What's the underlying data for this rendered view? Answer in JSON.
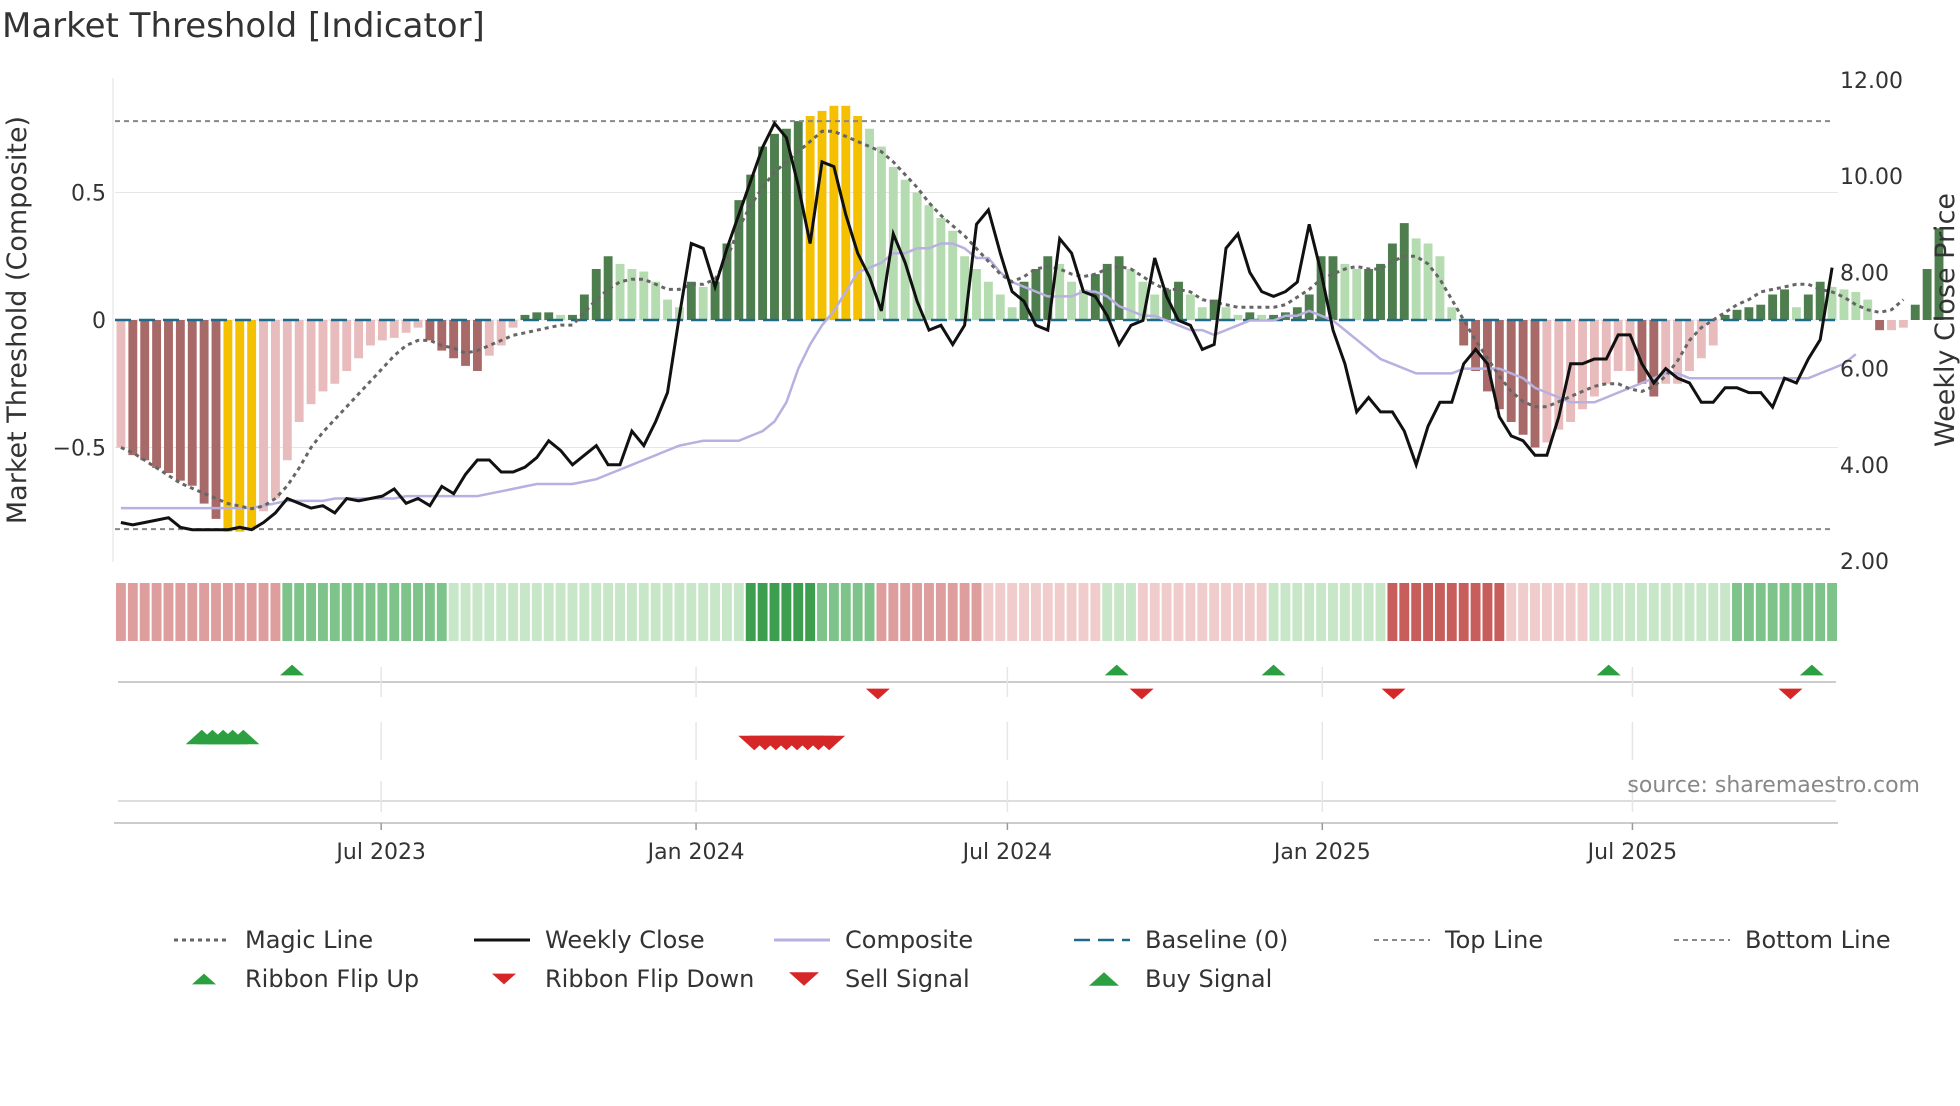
{
  "chart_data": {
    "type": "bar",
    "title": "Market Threshold [Indicator]",
    "ylabel_left": "Market Threshold (Composite)",
    "ylabel_right": "Weekly Close Price",
    "ylim_left": [
      -0.9,
      0.9
    ],
    "ylim_right": [
      2.0,
      12.0
    ],
    "yticks_left": [
      {
        "value": 0.5,
        "label": "0.5"
      },
      {
        "value": 0,
        "label": "0"
      },
      {
        "value": -0.5,
        "label": "−0.5"
      }
    ],
    "yticks_right": [
      {
        "value": 12,
        "label": "12.00"
      },
      {
        "value": 10,
        "label": "10.00"
      },
      {
        "value": 8,
        "label": "8.00"
      },
      {
        "value": 6,
        "label": "6.00"
      },
      {
        "value": 4,
        "label": "4.00"
      },
      {
        "value": 2,
        "label": "2.00"
      }
    ],
    "x_range": [
      0,
      145
    ],
    "xticks": [
      {
        "week": 22.4,
        "label": "Jul 2023"
      },
      {
        "week": 48.9,
        "label": "Jan 2024"
      },
      {
        "week": 75.1,
        "label": "Jul 2024"
      },
      {
        "week": 101.6,
        "label": "Jan 2025"
      },
      {
        "week": 127.7,
        "label": "Jul 2025"
      }
    ],
    "top_line": 0.78,
    "bottom_line": -0.82,
    "composite_bars": [
      -0.5,
      -0.53,
      -0.55,
      -0.58,
      -0.6,
      -0.63,
      -0.65,
      -0.72,
      -0.78,
      -0.83,
      -0.83,
      -0.82,
      -0.75,
      -0.7,
      -0.55,
      -0.4,
      -0.33,
      -0.28,
      -0.25,
      -0.2,
      -0.15,
      -0.1,
      -0.08,
      -0.07,
      -0.05,
      -0.03,
      -0.08,
      -0.12,
      -0.15,
      -0.18,
      -0.2,
      -0.14,
      -0.1,
      -0.03,
      0.02,
      0.03,
      0.03,
      0.02,
      0.02,
      0.1,
      0.2,
      0.25,
      0.22,
      0.2,
      0.19,
      0.15,
      0.08,
      0.05,
      0.15,
      0.13,
      0.15,
      0.3,
      0.47,
      0.57,
      0.68,
      0.73,
      0.75,
      0.78,
      0.8,
      0.82,
      0.84,
      0.84,
      0.8,
      0.75,
      0.68,
      0.6,
      0.55,
      0.5,
      0.45,
      0.4,
      0.35,
      0.25,
      0.2,
      0.15,
      0.1,
      0.05,
      0.15,
      0.2,
      0.25,
      0.22,
      0.15,
      0.12,
      0.18,
      0.22,
      0.25,
      0.2,
      0.15,
      0.1,
      0.12,
      0.15,
      0.1,
      0.05,
      0.08,
      0.05,
      0.02,
      0.03,
      0.02,
      0.02,
      0.03,
      0.05,
      0.1,
      0.25,
      0.25,
      0.22,
      0.2,
      0.2,
      0.22,
      0.3,
      0.38,
      0.32,
      0.3,
      0.25,
      0.05,
      -0.1,
      -0.2,
      -0.28,
      -0.35,
      -0.4,
      -0.45,
      -0.5,
      -0.48,
      -0.43,
      -0.4,
      -0.35,
      -0.3,
      -0.25,
      -0.2,
      -0.2,
      -0.25,
      -0.3,
      -0.25,
      -0.25,
      -0.2,
      -0.15,
      -0.1,
      0.02,
      0.04,
      0.05,
      0.06,
      0.1,
      0.12,
      0.05,
      0.1,
      0.15,
      0.13,
      0.12,
      0.11,
      0.08,
      -0.04,
      -0.04,
      -0.03,
      0.06,
      0.2,
      0.36
    ],
    "weekly_close": [
      2.8,
      2.75,
      2.8,
      2.85,
      2.9,
      2.7,
      2.65,
      2.65,
      2.65,
      2.65,
      2.7,
      2.65,
      2.8,
      3.0,
      3.3,
      3.2,
      3.1,
      3.15,
      3.0,
      3.3,
      3.25,
      3.3,
      3.35,
      3.5,
      3.2,
      3.3,
      3.15,
      3.55,
      3.4,
      3.8,
      4.1,
      4.1,
      3.85,
      3.85,
      3.95,
      4.15,
      4.5,
      4.3,
      4.0,
      4.2,
      4.4,
      4.0,
      4.0,
      4.7,
      4.4,
      4.9,
      5.5,
      7.1,
      8.6,
      8.5,
      7.7,
      8.5,
      9.2,
      9.9,
      10.6,
      11.1,
      10.8,
      9.8,
      8.6,
      10.3,
      10.2,
      9.2,
      8.4,
      7.9,
      7.2,
      8.8,
      8.2,
      7.4,
      6.8,
      6.9,
      6.5,
      6.9,
      9.0,
      9.3,
      8.4,
      7.6,
      7.4,
      6.9,
      6.8,
      8.7,
      8.4,
      7.6,
      7.5,
      7.1,
      6.5,
      6.9,
      7.0,
      8.3,
      7.5,
      7.0,
      6.9,
      6.4,
      6.5,
      8.5,
      8.8,
      8.0,
      7.6,
      7.5,
      7.6,
      7.8,
      9.0,
      8.0,
      6.8,
      6.1,
      5.1,
      5.4,
      5.1,
      5.1,
      4.7,
      4.0,
      4.8,
      5.3,
      5.3,
      6.1,
      6.4,
      6.1,
      5.0,
      4.6,
      4.5,
      4.2,
      4.2,
      5.0,
      6.1,
      6.1,
      6.2,
      6.2,
      6.7,
      6.7,
      6.1,
      5.7,
      6.0,
      5.8,
      5.7,
      5.3,
      5.3,
      5.6,
      5.6,
      5.5,
      5.5,
      5.2,
      5.8,
      5.7,
      6.2,
      6.6,
      8.1
    ],
    "composite_line": [
      3.1,
      3.1,
      3.1,
      3.1,
      3.1,
      3.1,
      3.1,
      3.1,
      3.1,
      3.1,
      3.1,
      3.1,
      3.15,
      3.2,
      3.25,
      3.25,
      3.25,
      3.25,
      3.3,
      3.3,
      3.3,
      3.3,
      3.3,
      3.3,
      3.35,
      3.35,
      3.35,
      3.35,
      3.35,
      3.35,
      3.35,
      3.4,
      3.45,
      3.5,
      3.55,
      3.6,
      3.6,
      3.6,
      3.6,
      3.65,
      3.7,
      3.8,
      3.9,
      4.0,
      4.1,
      4.2,
      4.3,
      4.4,
      4.45,
      4.5,
      4.5,
      4.5,
      4.5,
      4.6,
      4.7,
      4.9,
      5.3,
      6.0,
      6.5,
      6.9,
      7.2,
      7.6,
      8.0,
      8.1,
      8.2,
      8.4,
      8.4,
      8.5,
      8.5,
      8.6,
      8.6,
      8.5,
      8.3,
      8.3,
      8.0,
      7.8,
      7.7,
      7.6,
      7.5,
      7.5,
      7.5,
      7.6,
      7.6,
      7.5,
      7.3,
      7.2,
      7.1,
      7.1,
      7.0,
      6.9,
      6.8,
      6.8,
      6.7,
      6.8,
      6.9,
      7.0,
      7.0,
      7.0,
      7.1,
      7.1,
      7.2,
      7.1,
      7.0,
      6.8,
      6.6,
      6.4,
      6.2,
      6.1,
      6.0,
      5.9,
      5.9,
      5.9,
      5.9,
      6.0,
      6.0,
      6.0,
      6.0,
      5.9,
      5.8,
      5.6,
      5.5,
      5.4,
      5.3,
      5.3,
      5.3,
      5.4,
      5.5,
      5.6,
      5.7,
      5.8,
      5.9,
      5.9,
      5.8,
      5.8,
      5.8,
      5.8,
      5.8,
      5.8,
      5.8,
      5.8,
      5.8,
      5.8,
      5.8,
      5.9,
      6.0,
      6.1,
      6.3
    ],
    "magic_line": [
      -0.5,
      -0.52,
      -0.55,
      -0.58,
      -0.61,
      -0.64,
      -0.66,
      -0.68,
      -0.7,
      -0.72,
      -0.73,
      -0.74,
      -0.73,
      -0.7,
      -0.65,
      -0.58,
      -0.5,
      -0.44,
      -0.39,
      -0.34,
      -0.29,
      -0.24,
      -0.19,
      -0.14,
      -0.1,
      -0.08,
      -0.08,
      -0.1,
      -0.11,
      -0.13,
      -0.12,
      -0.1,
      -0.08,
      -0.06,
      -0.05,
      -0.04,
      -0.03,
      -0.02,
      -0.02,
      0.03,
      0.08,
      0.12,
      0.15,
      0.16,
      0.16,
      0.14,
      0.12,
      0.12,
      0.14,
      0.14,
      0.16,
      0.24,
      0.36,
      0.45,
      0.52,
      0.58,
      0.62,
      0.66,
      0.7,
      0.74,
      0.74,
      0.72,
      0.7,
      0.68,
      0.66,
      0.62,
      0.57,
      0.52,
      0.46,
      0.41,
      0.37,
      0.33,
      0.28,
      0.23,
      0.18,
      0.15,
      0.17,
      0.2,
      0.21,
      0.2,
      0.18,
      0.17,
      0.18,
      0.2,
      0.21,
      0.2,
      0.17,
      0.14,
      0.12,
      0.12,
      0.11,
      0.08,
      0.07,
      0.06,
      0.05,
      0.05,
      0.05,
      0.05,
      0.06,
      0.09,
      0.12,
      0.16,
      0.18,
      0.2,
      0.21,
      0.2,
      0.2,
      0.23,
      0.25,
      0.25,
      0.22,
      0.16,
      0.08,
      0.0,
      -0.08,
      -0.15,
      -0.22,
      -0.28,
      -0.32,
      -0.34,
      -0.34,
      -0.32,
      -0.3,
      -0.28,
      -0.26,
      -0.25,
      -0.25,
      -0.27,
      -0.28,
      -0.26,
      -0.22,
      -0.16,
      -0.08,
      -0.03,
      0.0,
      0.03,
      0.06,
      0.08,
      0.11,
      0.12,
      0.13,
      0.14,
      0.14,
      0.12,
      0.11,
      0.09,
      0.06,
      0.04,
      0.03,
      0.04,
      0.08
    ],
    "ribbon": [
      [
        0,
        14,
        "bear",
        2
      ],
      [
        14,
        28,
        "bull",
        2
      ],
      [
        28,
        42,
        "bull",
        1
      ],
      [
        42,
        53,
        "bull",
        1
      ],
      [
        53,
        59,
        "bull",
        3
      ],
      [
        59,
        64,
        "bull",
        2
      ],
      [
        64,
        73,
        "bear",
        2
      ],
      [
        73,
        83,
        "bear",
        1
      ],
      [
        83,
        86,
        "bull",
        1
      ],
      [
        86,
        97,
        "bear",
        1
      ],
      [
        97,
        107,
        "bull",
        1
      ],
      [
        107,
        117,
        "bear",
        3
      ],
      [
        117,
        124,
        "bear",
        1
      ],
      [
        124,
        136,
        "bull",
        1
      ],
      [
        136,
        145,
        "bull",
        2
      ]
    ],
    "ribbon_flip_up": [
      14.4,
      83.8,
      97.0,
      125.2,
      142.3
    ],
    "ribbon_flip_down": [
      63.7,
      85.9,
      107.1,
      140.5
    ],
    "buy_signal": [
      6.8,
      7.7,
      8.6,
      9.4,
      10.3
    ],
    "sell_signal": [
      53.3,
      54.2,
      55.1,
      56.0,
      56.9,
      57.8,
      58.7,
      59.6
    ],
    "source": "source: sharemaestro.com",
    "legend": [
      {
        "label": "Magic Line",
        "type": "dotted-line",
        "color": "#666666"
      },
      {
        "label": "Weekly Close",
        "type": "solid-line",
        "color": "#111111"
      },
      {
        "label": "Composite",
        "type": "solid-line",
        "color": "#b8b0e0"
      },
      {
        "label": "Baseline (0)",
        "type": "dashed-line",
        "color": "#1f6a8c"
      },
      {
        "label": "Top Line",
        "type": "fine-dash",
        "color": "#888888"
      },
      {
        "label": "Bottom Line",
        "type": "fine-dash",
        "color": "#888888"
      },
      {
        "label": "Ribbon Flip Up",
        "type": "tri-up",
        "color": "#2ca040"
      },
      {
        "label": "Ribbon Flip Down",
        "type": "tri-down",
        "color": "#d62728"
      },
      {
        "label": "Sell Signal",
        "type": "tri-down-big",
        "color": "#d62728"
      },
      {
        "label": "Buy Signal",
        "type": "tri-up-big",
        "color": "#2ca040"
      }
    ],
    "colors": {
      "bull_strong": "#4e7d4e",
      "bull_light": "#b4dcb0",
      "bear_strong": "#a86a68",
      "bear_light": "#e8bcbc",
      "extreme": "#f5c000",
      "magic": "#666666",
      "close": "#111111",
      "composite": "#b8b0e0",
      "baseline": "#1f6a8c",
      "threshold": "#888888",
      "ribbon_bull": [
        "#c8e6c8",
        "#7ec48a",
        "#3c9e4e"
      ],
      "ribbon_bear": [
        "#f0cccc",
        "#de9e9e",
        "#c85e5c"
      ],
      "marker_green": "#2ca040",
      "marker_red": "#d62728",
      "grid": "#e6e6e6"
    }
  }
}
